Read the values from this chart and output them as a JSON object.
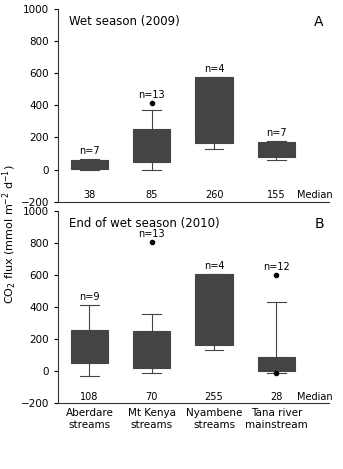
{
  "panel_A": {
    "title": "Wet season (2009)",
    "label": "A",
    "boxes": [
      {
        "group": "Aberdare\nstreams",
        "n": 7,
        "median": 38,
        "q1": 5,
        "q3": 62,
        "whisker_low": 0,
        "whisker_high": 65,
        "fliers_low": [],
        "fliers_high": []
      },
      {
        "group": "Mt Kenya\nstreams",
        "n": 13,
        "median": 85,
        "q1": 50,
        "q3": 255,
        "whisker_low": 0,
        "whisker_high": 370,
        "fliers_low": [],
        "fliers_high": [
          415
        ]
      },
      {
        "group": "Nyambene\nstreams",
        "n": 4,
        "median": 260,
        "q1": 165,
        "q3": 580,
        "whisker_low": 130,
        "whisker_high": 580,
        "fliers_low": [],
        "fliers_high": []
      },
      {
        "group": "Tana river\nmainstream",
        "n": 7,
        "median": 155,
        "q1": 80,
        "q3": 175,
        "whisker_low": 60,
        "whisker_high": 180,
        "fliers_low": [],
        "fliers_high": []
      }
    ],
    "ylim": [
      -200,
      1000
    ],
    "yticks": [
      -200,
      0,
      200,
      400,
      600,
      800,
      1000
    ]
  },
  "panel_B": {
    "title": "End of wet season (2010)",
    "label": "B",
    "boxes": [
      {
        "group": "Aberdare\nstreams",
        "n": 9,
        "median": 108,
        "q1": 50,
        "q3": 255,
        "whisker_low": -30,
        "whisker_high": 415,
        "fliers_low": [],
        "fliers_high": []
      },
      {
        "group": "Mt Kenya\nstreams",
        "n": 13,
        "median": 70,
        "q1": 20,
        "q3": 250,
        "whisker_low": -10,
        "whisker_high": 360,
        "fliers_low": [],
        "fliers_high": [
          810
        ]
      },
      {
        "group": "Nyambene\nstreams",
        "n": 4,
        "median": 255,
        "q1": 165,
        "q3": 610,
        "whisker_low": 130,
        "whisker_high": 610,
        "fliers_low": [],
        "fliers_high": []
      },
      {
        "group": "Tana river\nmainstream",
        "n": 12,
        "median": 28,
        "q1": 5,
        "q3": 92,
        "whisker_low": -10,
        "whisker_high": 430,
        "fliers_low": [
          -10
        ],
        "fliers_high": [
          600
        ]
      }
    ],
    "ylim": [
      -200,
      1000
    ],
    "yticks": [
      -200,
      0,
      200,
      400,
      600,
      800,
      1000
    ]
  },
  "ylabel": "CO2 flux (mmol m-2 d-1)",
  "box_facecolor": "#c8c8c8",
  "box_edge_color": "#444444",
  "median_color": "#444444",
  "whisker_color": "#444444",
  "cap_color": "#444444",
  "flier_color": "black",
  "n_label_fontsize": 7,
  "median_label_fontsize": 7,
  "title_fontsize": 8.5,
  "tick_fontsize": 7.5,
  "ylabel_fontsize": 8
}
